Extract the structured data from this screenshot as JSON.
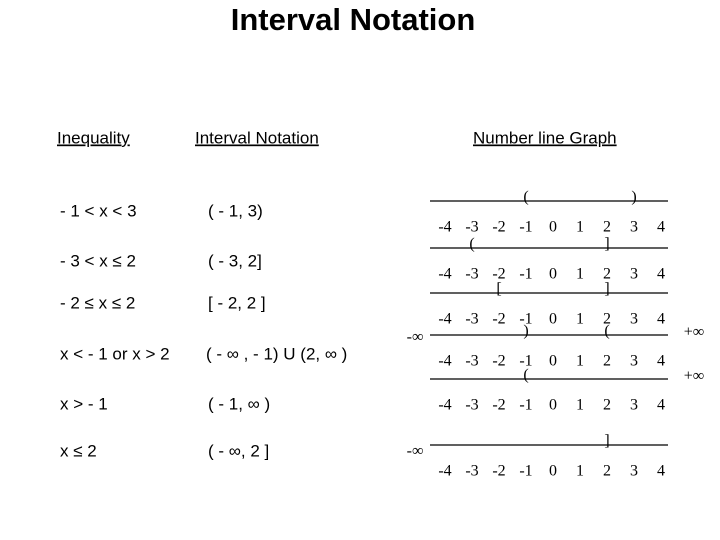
{
  "title": "Interval Notation",
  "headers": [
    "Inequality",
    "Interval Notation",
    "Number line Graph"
  ],
  "number_line_ticks": [
    -4,
    -3,
    -2,
    -1,
    0,
    1,
    2,
    3,
    4
  ],
  "rows": [
    {
      "inequality": "- 1 < x < 3",
      "interval": "( - 1, 3)",
      "graph": {
        "brackets": [
          {
            "symbol": "(",
            "at": -1
          },
          {
            "symbol": ")",
            "at": 3
          }
        ]
      }
    },
    {
      "inequality": "- 3 < x ≤ 2",
      "interval": "( - 3, 2]",
      "graph": {
        "brackets": [
          {
            "symbol": "(",
            "at": -3
          },
          {
            "symbol": "]",
            "at": 2
          }
        ]
      }
    },
    {
      "inequality": "- 2 ≤ x ≤ 2",
      "interval": "[ - 2, 2 ]",
      "graph": {
        "brackets": [
          {
            "symbol": "[",
            "at": -2
          },
          {
            "symbol": "]",
            "at": 2
          }
        ]
      }
    },
    {
      "inequality": "x < - 1 or x > 2",
      "interval": "( - ∞ , - 1) U (2, ∞ )",
      "graph": {
        "brackets": [
          {
            "symbol": ")",
            "at": -1
          },
          {
            "symbol": "(",
            "at": 2
          }
        ],
        "left_label": "-∞",
        "right_label": "+∞"
      }
    },
    {
      "inequality": "x > - 1",
      "interval": "( - 1, ∞ )",
      "graph": {
        "brackets": [
          {
            "symbol": "(",
            "at": -1
          }
        ],
        "right_label": "+∞"
      }
    },
    {
      "inequality": "x ≤ 2",
      "interval": "( - ∞, 2 ]",
      "graph": {
        "brackets": [
          {
            "symbol": "]",
            "at": 2
          }
        ],
        "left_label": "-∞"
      }
    }
  ]
}
